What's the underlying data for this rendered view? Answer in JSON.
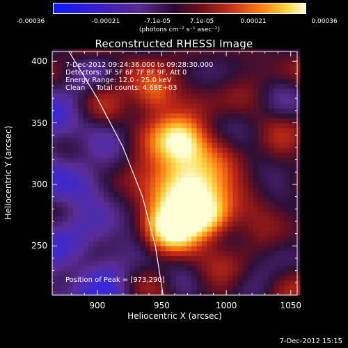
{
  "chart_data": {
    "type": "heatmap",
    "title": "Reconstructed RHESSI Image",
    "xlabel": "Heliocentric X (arcsec)",
    "ylabel": "Heliocentric Y (arcsec)",
    "xlim": [
      865,
      1055
    ],
    "ylim": [
      210,
      408
    ],
    "x_ticks": [
      900,
      950,
      1000,
      1050
    ],
    "y_ticks": [
      250,
      300,
      350,
      400
    ],
    "colorbar": {
      "ticks": [
        "-0.00036",
        "-0.00021",
        "-7.1e-05",
        "7.1e-05",
        "0.00021",
        "0.00036"
      ],
      "tick_values": [
        -0.00036,
        -0.00021,
        -7.1e-05,
        7.1e-05,
        0.00021,
        0.00036
      ],
      "range": [
        -0.00036,
        0.00036
      ],
      "units": "(photons cm⁻² s⁻¹ asec⁻²)"
    },
    "info_lines": [
      "7-Dec-2012 09:24:36.000 to 09:28:30.000",
      "Detectors: 3F 5F 6F 7F 8F 9F, Att 0",
      "Energy Range: 12.0 - 25.0 keV",
      "Clean     Total counts: 4.68E+03"
    ],
    "peak_label": "Position of Peak = [973,290]",
    "peak_position": [
      973,
      290
    ],
    "limb_curve": [
      [
        878,
        408
      ],
      [
        900,
        370
      ],
      [
        920,
        330
      ],
      [
        935,
        290
      ],
      [
        945,
        250
      ],
      [
        951,
        210
      ]
    ],
    "limb_color": "#ffffff",
    "sources": [
      {
        "x": 968,
        "y": 292,
        "peak": 1.0,
        "sigma": 22
      },
      {
        "x": 963,
        "y": 333,
        "peak": 0.85,
        "sigma": 14
      },
      {
        "x": 955,
        "y": 262,
        "peak": 0.75,
        "sigma": 14
      },
      {
        "x": 942,
        "y": 370,
        "peak": 0.6,
        "sigma": 12
      },
      {
        "x": 985,
        "y": 270,
        "peak": 0.55,
        "sigma": 12
      }
    ]
  },
  "timestamp": "7-Dec-2012 15:15"
}
